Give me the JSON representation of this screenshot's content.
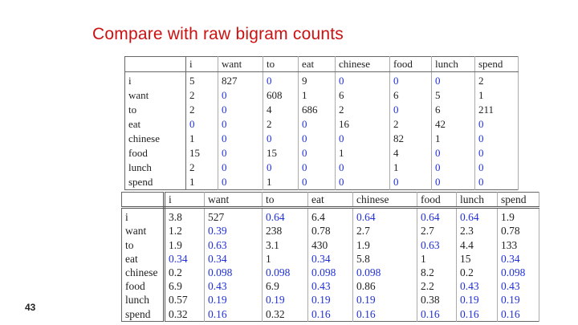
{
  "slide": {
    "title": "Compare with raw bigram counts",
    "page_number": "43"
  },
  "colors": {
    "title": "#cc1111",
    "zero_value": "#2030d8",
    "text": "#222222"
  },
  "counts_table": {
    "columns": [
      "i",
      "want",
      "to",
      "eat",
      "chinese",
      "food",
      "lunch",
      "spend"
    ],
    "rows": [
      {
        "label": "i",
        "values": [
          "5",
          "827",
          "0",
          "9",
          "0",
          "0",
          "0",
          "2"
        ],
        "highlight": [
          false,
          false,
          true,
          false,
          true,
          true,
          true,
          false
        ]
      },
      {
        "label": "want",
        "values": [
          "2",
          "0",
          "608",
          "1",
          "6",
          "6",
          "5",
          "1"
        ],
        "highlight": [
          false,
          true,
          false,
          false,
          false,
          false,
          false,
          false
        ]
      },
      {
        "label": "to",
        "values": [
          "2",
          "0",
          "4",
          "686",
          "2",
          "0",
          "6",
          "211"
        ],
        "highlight": [
          false,
          true,
          false,
          false,
          false,
          true,
          false,
          false
        ]
      },
      {
        "label": "eat",
        "values": [
          "0",
          "0",
          "2",
          "0",
          "16",
          "2",
          "42",
          "0"
        ],
        "highlight": [
          true,
          true,
          false,
          true,
          false,
          false,
          false,
          true
        ]
      },
      {
        "label": "chinese",
        "values": [
          "1",
          "0",
          "0",
          "0",
          "0",
          "82",
          "1",
          "0"
        ],
        "highlight": [
          false,
          true,
          true,
          true,
          true,
          false,
          false,
          true
        ]
      },
      {
        "label": "food",
        "values": [
          "15",
          "0",
          "15",
          "0",
          "1",
          "4",
          "0",
          "0"
        ],
        "highlight": [
          false,
          true,
          false,
          true,
          false,
          false,
          true,
          true
        ]
      },
      {
        "label": "lunch",
        "values": [
          "2",
          "0",
          "0",
          "0",
          "0",
          "1",
          "0",
          "0"
        ],
        "highlight": [
          false,
          true,
          true,
          true,
          true,
          false,
          true,
          true
        ]
      },
      {
        "label": "spend",
        "values": [
          "1",
          "0",
          "1",
          "0",
          "0",
          "0",
          "0",
          "0"
        ],
        "highlight": [
          false,
          true,
          false,
          true,
          true,
          true,
          true,
          true
        ]
      }
    ]
  },
  "smoothed_table": {
    "columns": [
      "i",
      "want",
      "to",
      "eat",
      "chinese",
      "food",
      "lunch",
      "spend"
    ],
    "rows": [
      {
        "label": "i",
        "values": [
          "3.8",
          "527",
          "0.64",
          "6.4",
          "0.64",
          "0.64",
          "0.64",
          "1.9"
        ],
        "highlight": [
          false,
          false,
          true,
          false,
          true,
          true,
          true,
          false
        ]
      },
      {
        "label": "want",
        "values": [
          "1.2",
          "0.39",
          "238",
          "0.78",
          "2.7",
          "2.7",
          "2.3",
          "0.78"
        ],
        "highlight": [
          false,
          true,
          false,
          false,
          false,
          false,
          false,
          false
        ]
      },
      {
        "label": "to",
        "values": [
          "1.9",
          "0.63",
          "3.1",
          "430",
          "1.9",
          "0.63",
          "4.4",
          "133"
        ],
        "highlight": [
          false,
          true,
          false,
          false,
          false,
          true,
          false,
          false
        ]
      },
      {
        "label": "eat",
        "values": [
          "0.34",
          "0.34",
          "1",
          "0.34",
          "5.8",
          "1",
          "15",
          "0.34"
        ],
        "highlight": [
          true,
          true,
          false,
          true,
          false,
          false,
          false,
          true
        ]
      },
      {
        "label": "chinese",
        "values": [
          "0.2",
          "0.098",
          "0.098",
          "0.098",
          "0.098",
          "8.2",
          "0.2",
          "0.098"
        ],
        "highlight": [
          false,
          true,
          true,
          true,
          true,
          false,
          false,
          true
        ]
      },
      {
        "label": "food",
        "values": [
          "6.9",
          "0.43",
          "6.9",
          "0.43",
          "0.86",
          "2.2",
          "0.43",
          "0.43"
        ],
        "highlight": [
          false,
          true,
          false,
          true,
          false,
          false,
          true,
          true
        ]
      },
      {
        "label": "lunch",
        "values": [
          "0.57",
          "0.19",
          "0.19",
          "0.19",
          "0.19",
          "0.38",
          "0.19",
          "0.19"
        ],
        "highlight": [
          false,
          true,
          true,
          true,
          true,
          false,
          true,
          true
        ]
      },
      {
        "label": "spend",
        "values": [
          "0.32",
          "0.16",
          "0.32",
          "0.16",
          "0.16",
          "0.16",
          "0.16",
          "0.16"
        ],
        "highlight": [
          false,
          true,
          false,
          true,
          true,
          true,
          true,
          true
        ]
      }
    ]
  }
}
